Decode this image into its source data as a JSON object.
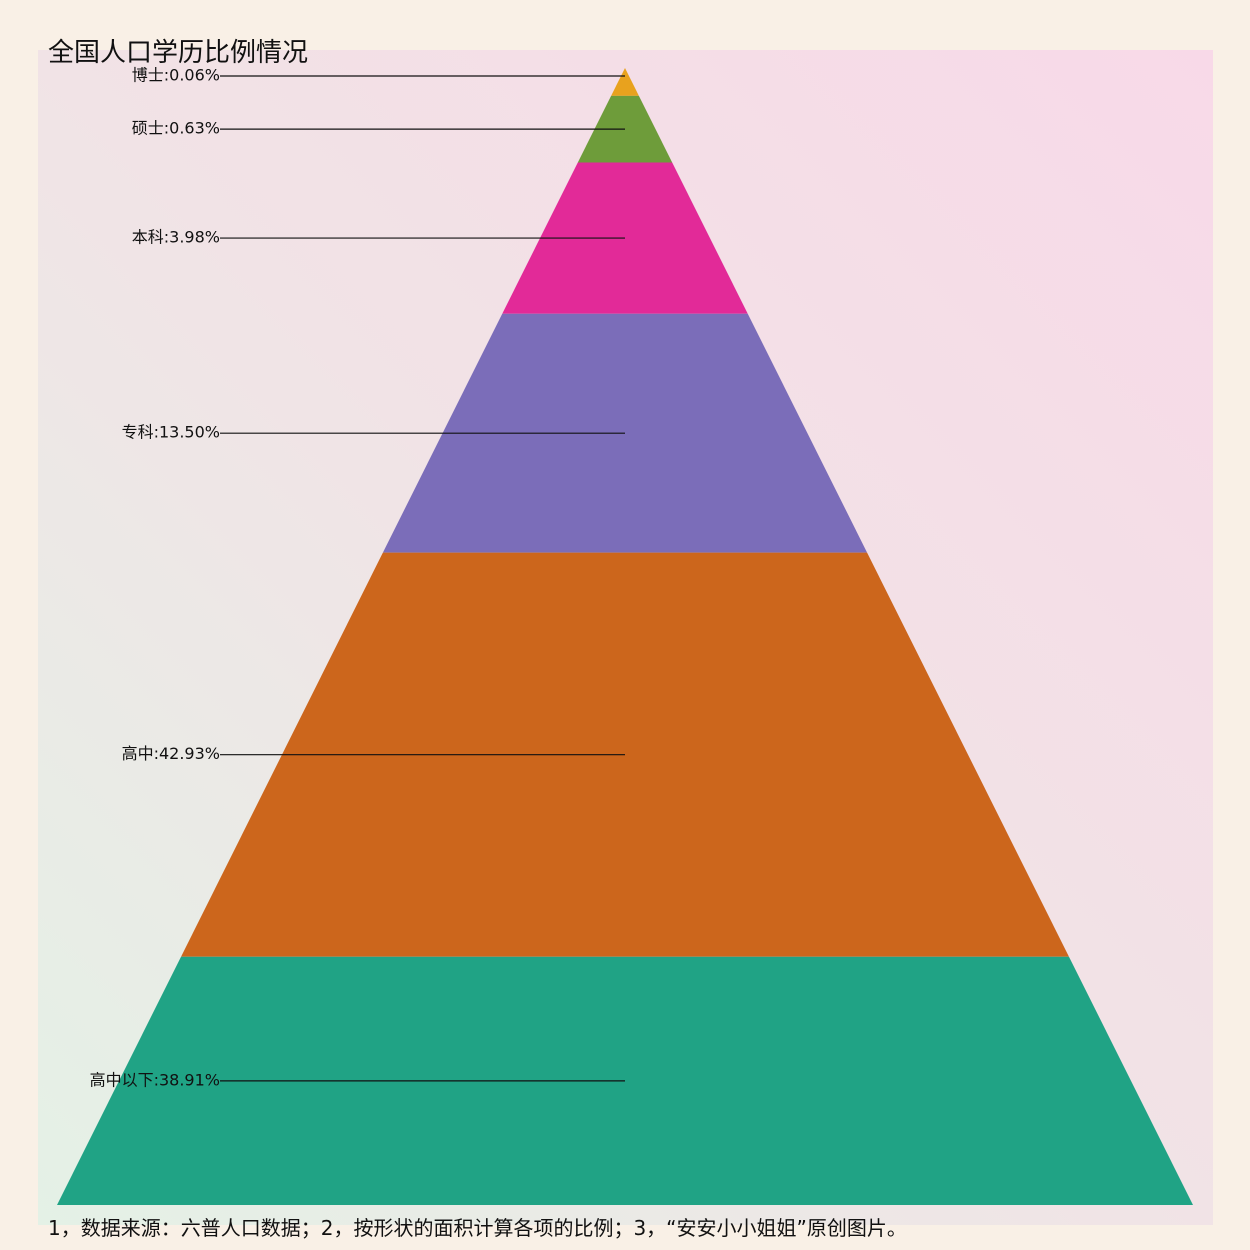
{
  "chart_data": {
    "type": "pyramid",
    "title": "全国人口学历比例情况",
    "footnote": "1，数据来源：六普人口数据；2，按形状的面积计算各项的比例；3，“安安小小姐姐”原创图片。",
    "series": [
      {
        "name": "博士",
        "label": "博士:0.06%",
        "value": 0.06,
        "color": "#e8a21e"
      },
      {
        "name": "硕士",
        "label": "硕士:0.63%",
        "value": 0.63,
        "color": "#6e9c3a"
      },
      {
        "name": "本科",
        "label": "本科:3.98%",
        "value": 3.98,
        "color": "#e22a98"
      },
      {
        "name": "专科",
        "label": "专科:13.50%",
        "value": 13.5,
        "color": "#7b6db9"
      },
      {
        "name": "高中",
        "label": "高中:42.93%",
        "value": 42.93,
        "color": "#cc661c"
      },
      {
        "name": "高中以下",
        "label": "高中以下:38.91%",
        "value": 38.91,
        "color": "#20a385"
      }
    ]
  }
}
